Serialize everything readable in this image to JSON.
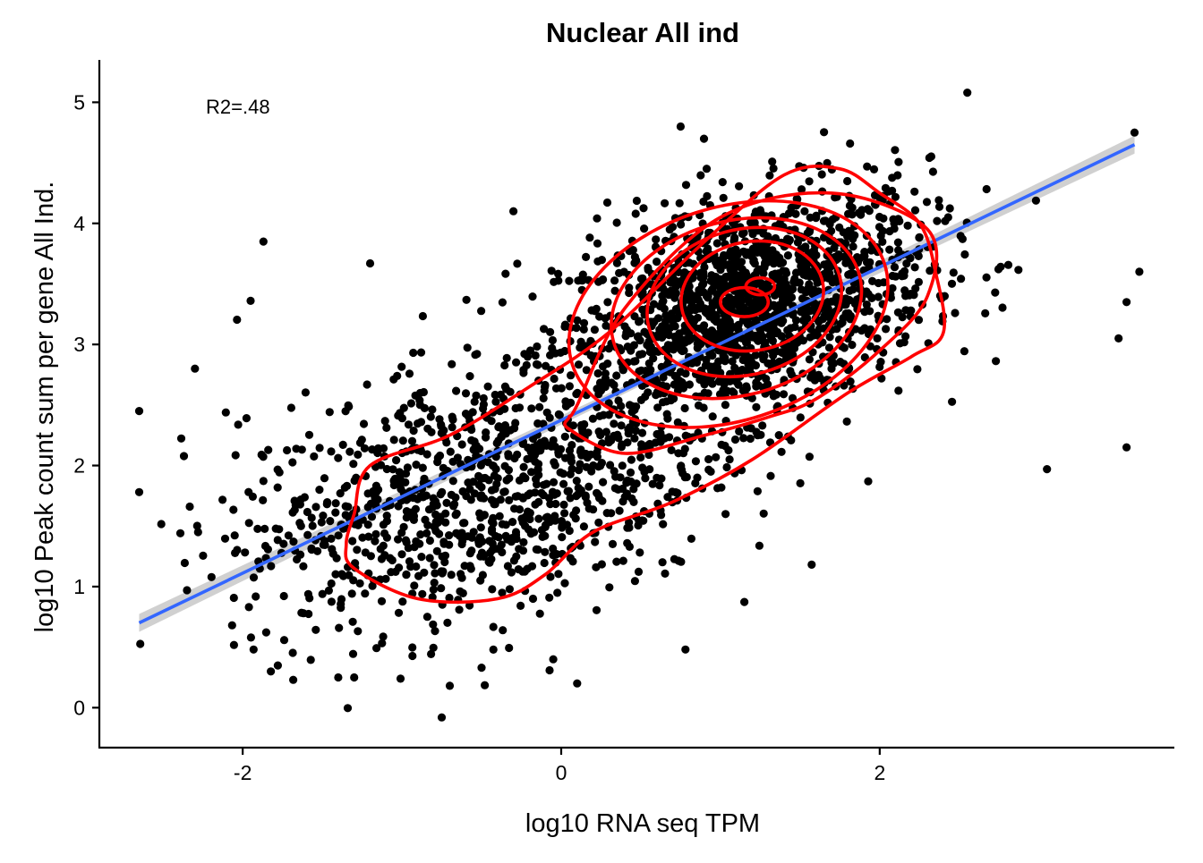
{
  "chart_data": {
    "type": "scatter",
    "title": "Nuclear All ind",
    "xlabel": "log10 RNA seq TPM",
    "ylabel": "log10 Peak count sum per gene All Ind.",
    "annotation": "R2=.48",
    "xlim": [
      -2.9,
      3.85
    ],
    "ylim": [
      -0.33,
      5.35
    ],
    "x_ticks": [
      -2,
      0,
      2
    ],
    "y_ticks": [
      0,
      1,
      2,
      3,
      4,
      5
    ],
    "x_tick_labels": [
      "-2",
      "0",
      "2"
    ],
    "y_tick_labels": [
      "0",
      "1",
      "2",
      "3",
      "4",
      "5"
    ],
    "grid": false,
    "legend": "none",
    "colors": {
      "points": "#000000",
      "contours": "#ff0000",
      "fit_line": "#3366ff",
      "confidence_band": "#c8c8c8"
    },
    "fit_line": {
      "x": [
        -2.65,
        3.6
      ],
      "y": [
        0.7,
        4.65
      ]
    },
    "density_mode": {
      "x": 1.25,
      "y": 3.48
    },
    "contour_levels": [
      {
        "cx": 1.15,
        "cy": 3.35,
        "rx": 0.15,
        "ry": 0.12,
        "angle": 0
      },
      {
        "cx": 1.2,
        "cy": 3.4,
        "rx": 0.45,
        "ry": 0.45,
        "angle": -10
      },
      {
        "cx": 1.15,
        "cy": 3.35,
        "rx": 0.62,
        "ry": 0.6,
        "angle": -15
      },
      {
        "cx": 1.1,
        "cy": 3.3,
        "rx": 0.8,
        "ry": 0.72,
        "angle": -15
      },
      {
        "cx": 1.05,
        "cy": 3.25,
        "rx": 1.03,
        "ry": 0.88,
        "angle": -18
      }
    ],
    "outer_contours": [
      {
        "x": [
          0.1,
          0.4,
          1.0,
          1.7,
          2.3,
          2.3,
          2.0,
          1.6,
          1.3,
          0.9,
          0.4,
          0.05,
          0.05,
          0.1
        ],
        "y": [
          2.5,
          3.3,
          4.05,
          4.25,
          3.95,
          3.4,
          2.95,
          2.55,
          2.4,
          2.25,
          2.1,
          2.3,
          2.4,
          2.5
        ]
      },
      {
        "x": [
          -1.3,
          -1.2,
          -0.7,
          -0.2,
          0.3,
          0.9,
          1.4,
          1.75,
          2.0,
          2.25,
          2.35,
          2.4,
          2.2,
          1.8,
          1.2,
          0.7,
          0.2,
          -0.1,
          -0.4,
          -0.9,
          -1.3,
          -1.35,
          -1.3
        ],
        "y": [
          1.6,
          2.0,
          2.25,
          2.65,
          3.1,
          3.85,
          4.4,
          4.45,
          4.25,
          4.0,
          3.6,
          3.1,
          2.9,
          2.6,
          2.05,
          1.7,
          1.45,
          1.1,
          0.9,
          0.9,
          1.15,
          1.35,
          1.6
        ]
      }
    ],
    "n_points": 2600,
    "scatter_mixture": [
      {
        "weight": 0.62,
        "mean_x": 1.15,
        "mean_y": 3.3,
        "sd_x": 0.58,
        "sd_y": 0.48,
        "corr": 0.35
      },
      {
        "weight": 0.38,
        "mean_x": -0.55,
        "mean_y": 1.75,
        "sd_x": 0.75,
        "sd_y": 0.55,
        "corr": 0.35
      }
    ],
    "notable_points": {
      "x": [
        -2.65,
        -2.65,
        -2.3,
        -1.95,
        -1.87,
        -2.28,
        -1.3,
        -0.75,
        -0.5,
        0.1,
        0.75,
        0.78,
        2.55,
        3.6,
        3.55,
        3.63,
        3.05,
        3.55,
        3.5,
        -1.4,
        -0.05,
        -2.35,
        -1.2,
        -0.3
      ],
      "y": [
        2.45,
        1.78,
        2.8,
        3.36,
        3.85,
        1.45,
        0.25,
        -0.08,
        0.33,
        0.2,
        4.8,
        0.48,
        5.08,
        4.75,
        2.15,
        3.6,
        1.97,
        3.35,
        3.05,
        0.25,
        0.4,
        0.97,
        3.67,
        4.1
      ]
    }
  }
}
